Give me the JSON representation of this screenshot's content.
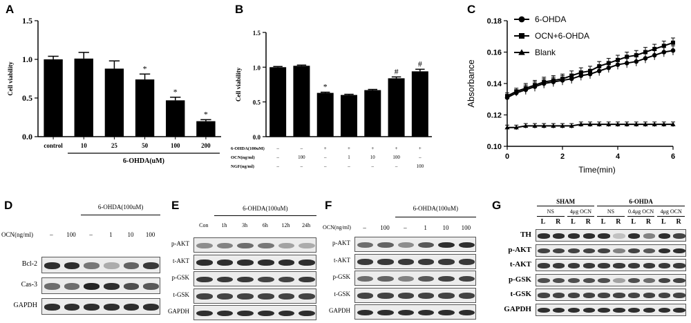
{
  "panels": {
    "A": "A",
    "B": "B",
    "C": "C",
    "D": "D",
    "E": "E",
    "F": "F",
    "G": "G"
  },
  "chart_data": [
    {
      "id": "A",
      "type": "bar",
      "ylabel": "Cell viability",
      "xlabel": "6-OHDA(uM)",
      "ylim": [
        0,
        1.5
      ],
      "yticks": [
        "0.0",
        "0.5",
        "1.0",
        "1.5"
      ],
      "categories": [
        "control",
        "10",
        "25",
        "50",
        "100",
        "200"
      ],
      "values": [
        1.0,
        1.01,
        0.88,
        0.74,
        0.47,
        0.2
      ],
      "errors": [
        0.04,
        0.08,
        0.1,
        0.07,
        0.04,
        0.02
      ],
      "significance": [
        "",
        "",
        "",
        "*",
        "*",
        "*"
      ]
    },
    {
      "id": "B",
      "type": "bar",
      "ylabel": "Cell viability",
      "ylim": [
        0,
        1.5
      ],
      "yticks": [
        "0.0",
        "0.5",
        "1.0",
        "1.5"
      ],
      "values": [
        1.0,
        1.02,
        0.63,
        0.6,
        0.67,
        0.84,
        0.94
      ],
      "errors": [
        0.01,
        0.01,
        0.01,
        0.01,
        0.01,
        0.02,
        0.03
      ],
      "significance": [
        "",
        "",
        "*",
        "",
        "",
        "#",
        "#"
      ],
      "condition_rows": [
        {
          "label": "6-OHDA(100uM)",
          "values": [
            "–",
            "–",
            "+",
            "+",
            "+",
            "+",
            "+"
          ]
        },
        {
          "label": "OCN(ng/ml)",
          "values": [
            "–",
            "100",
            "–",
            "1",
            "10",
            "100",
            "–"
          ]
        },
        {
          "label": "NGF(ng/ml)",
          "values": [
            "–",
            "–",
            "–",
            "–",
            "–",
            "–",
            "100"
          ]
        }
      ]
    },
    {
      "id": "C",
      "type": "line",
      "xlabel": "Time(min)",
      "ylabel": "Absorbance",
      "xlim": [
        0,
        6
      ],
      "ylim": [
        0.1,
        0.18
      ],
      "xticks": [
        "0",
        "2",
        "4",
        "6"
      ],
      "yticks": [
        "0.10",
        "0.12",
        "0.14",
        "0.16",
        "0.18"
      ],
      "x": [
        0,
        0.33,
        0.67,
        1.0,
        1.33,
        1.67,
        2.0,
        2.33,
        2.67,
        3.0,
        3.33,
        3.67,
        4.0,
        4.33,
        4.67,
        5.0,
        5.33,
        5.67,
        6.0
      ],
      "series": [
        {
          "name": "6-OHDA",
          "marker": "circle",
          "values": [
            0.131,
            0.134,
            0.136,
            0.138,
            0.14,
            0.141,
            0.142,
            0.143,
            0.145,
            0.146,
            0.148,
            0.15,
            0.152,
            0.153,
            0.154,
            0.156,
            0.158,
            0.16,
            0.161
          ]
        },
        {
          "name": "OCN+6-OHDA",
          "marker": "square",
          "values": [
            0.132,
            0.135,
            0.137,
            0.139,
            0.141,
            0.142,
            0.143,
            0.145,
            0.147,
            0.148,
            0.151,
            0.153,
            0.155,
            0.157,
            0.158,
            0.16,
            0.162,
            0.164,
            0.166
          ]
        },
        {
          "name": "Blank",
          "marker": "triangle",
          "values": [
            0.112,
            0.112,
            0.113,
            0.113,
            0.113,
            0.113,
            0.113,
            0.113,
            0.114,
            0.114,
            0.114,
            0.114,
            0.114,
            0.114,
            0.114,
            0.114,
            0.114,
            0.114,
            0.114
          ]
        }
      ],
      "legend": "top-left"
    }
  ],
  "blots": {
    "D": {
      "treatment_header": "6-OHDA(100uM)",
      "ocn_label": "OCN(ng/ml)",
      "lane_labels": [
        "–",
        "100",
        "–",
        "1",
        "10",
        "100"
      ],
      "rows": [
        {
          "label": "Bcl-2",
          "intensity": [
            0.9,
            0.9,
            0.55,
            0.3,
            0.65,
            0.85
          ]
        },
        {
          "label": "Cas-3",
          "intensity": [
            0.6,
            0.6,
            0.95,
            0.9,
            0.75,
            0.7
          ]
        },
        {
          "label": "GAPDH",
          "intensity": [
            0.9,
            0.9,
            0.9,
            0.9,
            0.9,
            0.9
          ]
        }
      ]
    },
    "E": {
      "treatment_header": "6-OHDA(100uM)",
      "lane_labels": [
        "Con",
        "1h",
        "3h",
        "6h",
        "12h",
        "24h"
      ],
      "rows": [
        {
          "label": "p-AKT",
          "intensity": [
            0.45,
            0.5,
            0.6,
            0.55,
            0.35,
            0.3
          ]
        },
        {
          "label": "t-AKT",
          "intensity": [
            0.9,
            0.9,
            0.9,
            0.9,
            0.9,
            0.9
          ]
        },
        {
          "label": "p-GSK",
          "intensity": [
            0.85,
            0.85,
            0.85,
            0.8,
            0.8,
            0.85
          ]
        },
        {
          "label": "t-GSK",
          "intensity": [
            0.8,
            0.8,
            0.8,
            0.8,
            0.8,
            0.8
          ]
        },
        {
          "label": "GAPDH",
          "intensity": [
            0.9,
            0.9,
            0.9,
            0.9,
            0.9,
            0.9
          ]
        }
      ]
    },
    "F": {
      "treatment_header": "6-OHDA(100uM)",
      "ocn_label": "OCN(ng/ml)",
      "lane_labels": [
        "–",
        "100",
        "–",
        "1",
        "10",
        "100"
      ],
      "rows": [
        {
          "label": "p-AKT",
          "intensity": [
            0.6,
            0.65,
            0.45,
            0.7,
            0.9,
            0.9
          ]
        },
        {
          "label": "t-AKT",
          "intensity": [
            0.85,
            0.85,
            0.85,
            0.85,
            0.85,
            0.85
          ]
        },
        {
          "label": "p-GSK",
          "intensity": [
            0.6,
            0.65,
            0.5,
            0.7,
            0.8,
            0.8
          ]
        },
        {
          "label": "t-GSK",
          "intensity": [
            0.8,
            0.8,
            0.8,
            0.8,
            0.8,
            0.8
          ]
        },
        {
          "label": "GAPDH",
          "intensity": [
            0.9,
            0.9,
            0.9,
            0.9,
            0.9,
            0.9
          ]
        }
      ]
    },
    "G": {
      "group_headers": [
        "SHAM",
        "6-OHDA"
      ],
      "subgroup_headers": [
        "NS",
        "4μg OCN",
        "NS",
        "0.4μg OCN",
        "4μg OCN"
      ],
      "lane_labels": [
        "L",
        "R",
        "L",
        "R",
        "L",
        "R",
        "L",
        "R",
        "L",
        "R"
      ],
      "rows": [
        {
          "label": "TH",
          "intensity": [
            0.9,
            0.9,
            0.9,
            0.9,
            0.9,
            0.2,
            0.9,
            0.5,
            0.9,
            0.8
          ]
        },
        {
          "label": "p-AKT",
          "intensity": [
            0.8,
            0.8,
            0.8,
            0.8,
            0.8,
            0.5,
            0.8,
            0.7,
            0.9,
            0.9
          ]
        },
        {
          "label": "t-AKT",
          "intensity": [
            0.85,
            0.85,
            0.85,
            0.85,
            0.85,
            0.85,
            0.85,
            0.85,
            0.85,
            0.85
          ]
        },
        {
          "label": "p-GSK",
          "intensity": [
            0.75,
            0.75,
            0.75,
            0.75,
            0.75,
            0.35,
            0.75,
            0.6,
            0.8,
            0.8
          ]
        },
        {
          "label": "t-GSK",
          "intensity": [
            0.8,
            0.8,
            0.8,
            0.8,
            0.8,
            0.8,
            0.8,
            0.8,
            0.8,
            0.8
          ]
        },
        {
          "label": "GAPDH",
          "intensity": [
            0.9,
            0.9,
            0.9,
            0.9,
            0.9,
            0.9,
            0.9,
            0.9,
            0.9,
            0.9
          ]
        }
      ]
    }
  }
}
